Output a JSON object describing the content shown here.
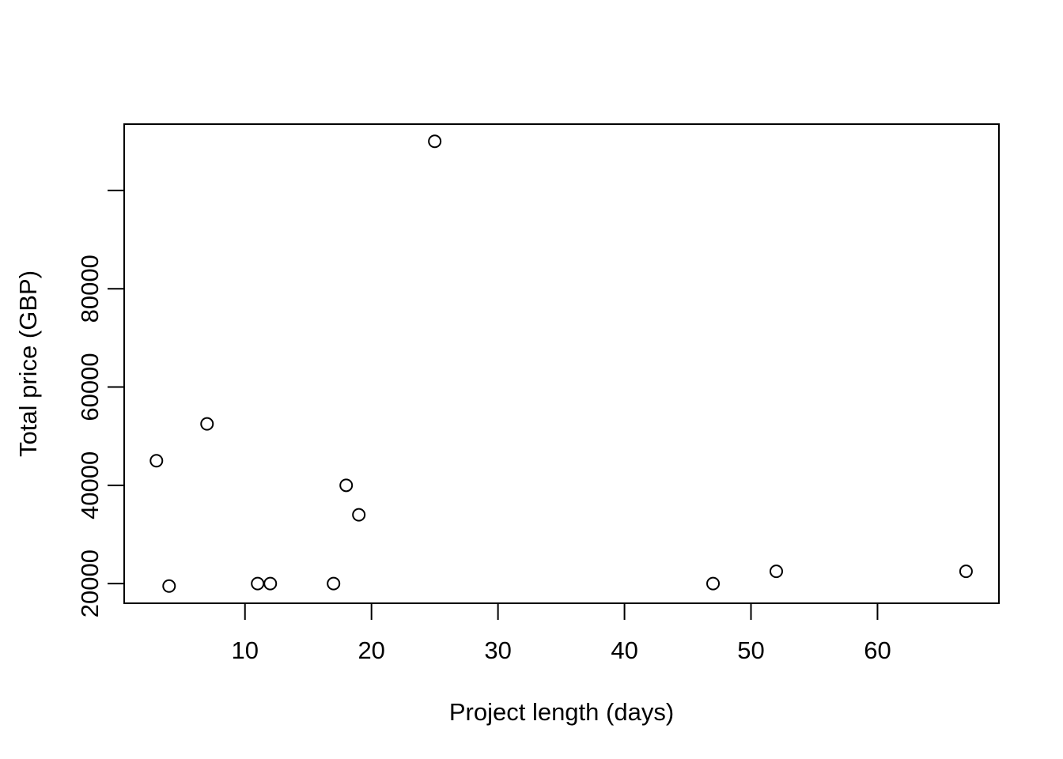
{
  "chart_data": {
    "type": "scatter",
    "title": "",
    "xlabel": "Project length (days)",
    "ylabel": "Total price (GBP)",
    "xlim": [
      0.45,
      69.6
    ],
    "ylim": [
      16000,
      113500
    ],
    "xticks": [
      10,
      20,
      30,
      40,
      50,
      60
    ],
    "yticks": [
      20000,
      40000,
      60000,
      80000,
      100000
    ],
    "ytick_labels": [
      "20000",
      "40000",
      "60000",
      "80000",
      ""
    ],
    "grid": false,
    "marker": "open-circle",
    "points": [
      {
        "x": 3,
        "y": 45000
      },
      {
        "x": 4,
        "y": 19500
      },
      {
        "x": 7,
        "y": 52500
      },
      {
        "x": 11,
        "y": 20000
      },
      {
        "x": 12,
        "y": 20000
      },
      {
        "x": 17,
        "y": 20000
      },
      {
        "x": 18,
        "y": 40000
      },
      {
        "x": 19,
        "y": 34000
      },
      {
        "x": 25,
        "y": 110000
      },
      {
        "x": 47,
        "y": 20000
      },
      {
        "x": 52,
        "y": 22500
      },
      {
        "x": 67,
        "y": 22500
      }
    ]
  }
}
